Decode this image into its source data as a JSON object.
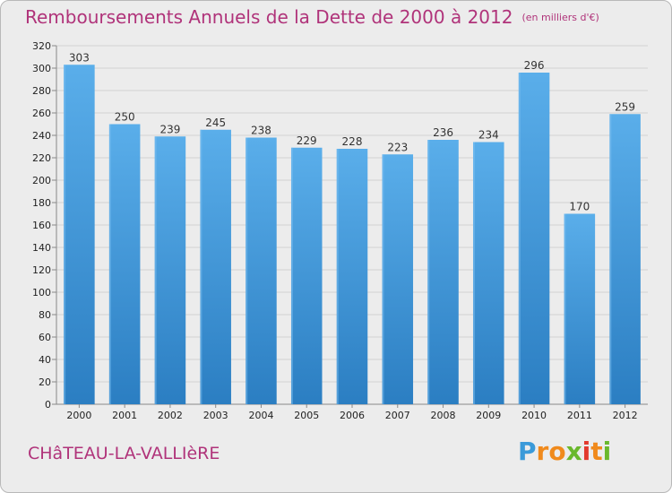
{
  "chart_data": {
    "type": "bar",
    "title": "Remboursements Annuels de la Dette de 2000 à 2012",
    "unit": "(en milliers d'€)",
    "categories": [
      "2000",
      "2001",
      "2002",
      "2003",
      "2004",
      "2005",
      "2006",
      "2007",
      "2008",
      "2009",
      "2010",
      "2011",
      "2012"
    ],
    "values": [
      303,
      250,
      239,
      245,
      238,
      229,
      228,
      223,
      236,
      234,
      296,
      170,
      259
    ],
    "ylim": [
      0,
      320
    ],
    "ytick_step": 20,
    "grid": true,
    "bar_color": "#4a9fe0"
  },
  "footer": {
    "city": "CHâTEAU-LA-VALLIèRE",
    "logo_letters": [
      "P",
      "r",
      "o",
      "x",
      "i",
      "t",
      "i"
    ],
    "logo_colors": [
      "#3a9ad9",
      "#f08a1c",
      "#f08a1c",
      "#6ab82c",
      "#e23a2e",
      "#f08a1c",
      "#6ab82c"
    ]
  }
}
